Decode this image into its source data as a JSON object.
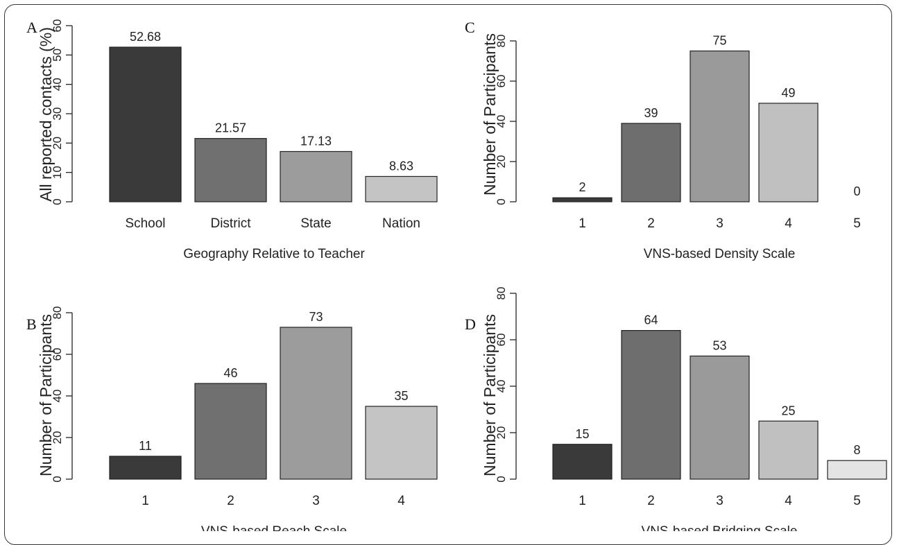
{
  "chart_data": [
    {
      "id": "A",
      "type": "bar",
      "panel_label": "A",
      "xlabel": "Geography Relative to Teacher",
      "ylabel": "All reported contacts (%)",
      "categories": [
        "School",
        "District",
        "State",
        "Nation"
      ],
      "values": [
        52.68,
        21.57,
        17.13,
        8.63
      ],
      "value_labels": [
        "52.68",
        "21.57",
        "17.13",
        "8.63"
      ],
      "ylim": [
        0,
        60
      ],
      "yticks": [
        0,
        10,
        20,
        30,
        40,
        50,
        60
      ],
      "ytick_labels": [
        "0",
        "10",
        "20",
        "30",
        "40",
        "50",
        "60"
      ],
      "colors": [
        "#3a3a3a",
        "#707070",
        "#9c9c9c",
        "#c4c4c4"
      ]
    },
    {
      "id": "B",
      "type": "bar",
      "panel_label": "B",
      "xlabel": "VNS-based Reach Scale",
      "ylabel": "Number of Participants",
      "categories": [
        "1",
        "2",
        "3",
        "4"
      ],
      "values": [
        11,
        46,
        73,
        35
      ],
      "value_labels": [
        "11",
        "46",
        "73",
        "35"
      ],
      "ylim": [
        0,
        80
      ],
      "yticks": [
        0,
        20,
        40,
        60,
        80
      ],
      "ytick_labels": [
        "0",
        "20",
        "40",
        "60",
        "80"
      ],
      "colors": [
        "#3a3a3a",
        "#707070",
        "#9c9c9c",
        "#c4c4c4"
      ]
    },
    {
      "id": "C",
      "type": "bar",
      "panel_label": "C",
      "xlabel": "VNS-based Density Scale",
      "ylabel": "Number of Participants",
      "categories": [
        "1",
        "2",
        "3",
        "4",
        "5"
      ],
      "values": [
        2,
        39,
        75,
        49,
        0
      ],
      "value_labels": [
        "2",
        "39",
        "75",
        "49",
        "0"
      ],
      "ylim": [
        0,
        80
      ],
      "yticks": [
        0,
        20,
        40,
        60,
        80
      ],
      "ytick_labels": [
        "0",
        "20",
        "40",
        "60",
        "80"
      ],
      "colors": [
        "#3a3a3a",
        "#6e6e6e",
        "#9a9a9a",
        "#c0c0c0",
        "#e4e4e4"
      ]
    },
    {
      "id": "D",
      "type": "bar",
      "panel_label": "D",
      "xlabel": "VNS-based Bridging Scale",
      "ylabel": "Number of Participants",
      "categories": [
        "1",
        "2",
        "3",
        "4",
        "5"
      ],
      "values": [
        15,
        64,
        53,
        25,
        8
      ],
      "value_labels": [
        "15",
        "64",
        "53",
        "25",
        "8"
      ],
      "ylim": [
        0,
        80
      ],
      "yticks": [
        0,
        20,
        40,
        60,
        80
      ],
      "ytick_labels": [
        "0",
        "20",
        "40",
        "60",
        "80"
      ],
      "colors": [
        "#3a3a3a",
        "#6e6e6e",
        "#9a9a9a",
        "#c0c0c0",
        "#e4e4e4"
      ]
    }
  ]
}
